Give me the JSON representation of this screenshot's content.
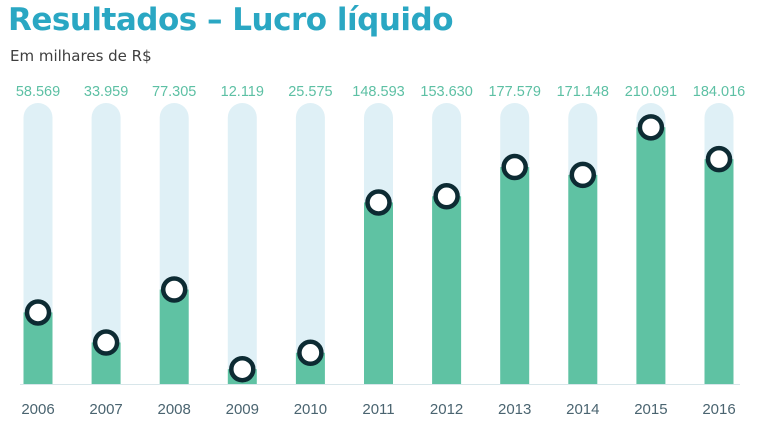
{
  "header": {
    "title": "Resultados – Lucro líquido",
    "subtitle": "Em milhares de R$"
  },
  "colors": {
    "title": "#2aa7c3",
    "bar": "#5fc2a3",
    "track": "#dff0f6",
    "marker_stroke": "#0d2b33",
    "marker_fill": "#ffffff",
    "value_label": "#5dc0a4",
    "axis": "#4a6470"
  },
  "chart_data": {
    "type": "bar",
    "title": "Resultados – Lucro líquido",
    "subtitle": "Em milhares de R$",
    "categories": [
      "2006",
      "2007",
      "2008",
      "2009",
      "2010",
      "2011",
      "2012",
      "2013",
      "2014",
      "2015",
      "2016"
    ],
    "values": [
      58569,
      33959,
      77305,
      12119,
      25575,
      148593,
      153630,
      177579,
      171148,
      210091,
      184016
    ],
    "value_labels": [
      "58.569",
      "33.959",
      "77.305",
      "12.119",
      "25.575",
      "148.593",
      "153.630",
      "177.579",
      "171.148",
      "210.091",
      "184.016"
    ],
    "xlabel": "",
    "ylabel": "",
    "ylim": [
      0,
      230000
    ],
    "grid": false,
    "legend": "none"
  }
}
